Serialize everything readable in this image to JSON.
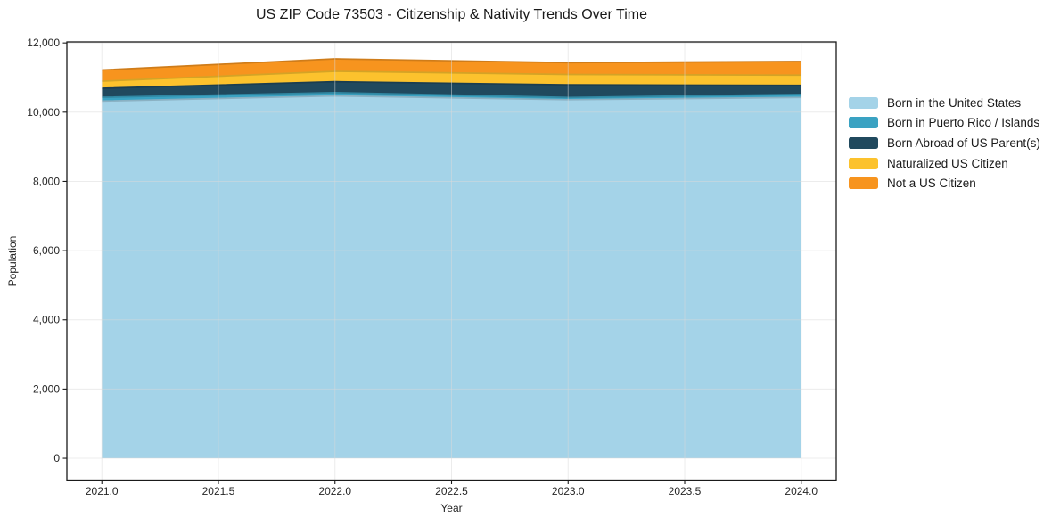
{
  "chart_data": {
    "type": "area",
    "stacked": true,
    "title": "US ZIP Code 73503 - Citizenship & Nativity Trends Over Time",
    "xlabel": "Year",
    "ylabel": "Population",
    "x": [
      2021,
      2022,
      2023,
      2024
    ],
    "series": [
      {
        "name": "Born in the United States",
        "color": "#A4D3E8",
        "values": [
          10320,
          10470,
          10360,
          10425
        ]
      },
      {
        "name": "Born in Puerto Rico / Islands",
        "color": "#3AA2C2",
        "values": [
          110,
          95,
          65,
          90
        ]
      },
      {
        "name": "Born Abroad of US Parent(s)",
        "color": "#20495E",
        "values": [
          260,
          315,
          365,
          260
        ]
      },
      {
        "name": "Naturalized US Citizen",
        "color": "#FCC22D",
        "values": [
          205,
          300,
          300,
          295
        ]
      },
      {
        "name": "Not a US Citizen",
        "color": "#F7941E",
        "values": [
          325,
          360,
          340,
          395
        ]
      }
    ],
    "totals_by_year": [
      11220,
      11540,
      11430,
      11465
    ],
    "x_tick_labels": [
      "2021.0",
      "2021.5",
      "2022.0",
      "2022.5",
      "2023.0",
      "2023.5",
      "2024.0"
    ],
    "y_tick_labels": [
      "0",
      "2,000",
      "4,000",
      "6,000",
      "8,000",
      "10,000",
      "12,000"
    ],
    "xlim": [
      2020.85,
      2024.15
    ],
    "ylim": [
      -630,
      12030
    ],
    "grid": true,
    "legend_position": "right-of-plot",
    "colors": {
      "spine": "#1a1a1a",
      "grid": "#d9d9d9",
      "tick_text": "#262626",
      "background": "#ffffff"
    }
  }
}
